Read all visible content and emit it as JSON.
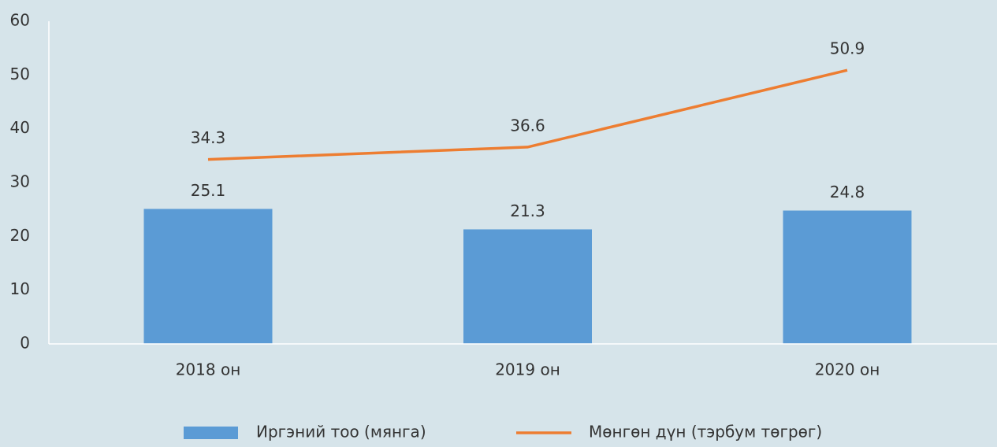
{
  "chart_data": {
    "type": "bar",
    "categories": [
      "2018 он",
      "2019 он",
      "2020 он"
    ],
    "series": [
      {
        "name": "Иргэний тоо (мянга)",
        "type": "bar",
        "color": "#5b9bd5",
        "values": [
          25.1,
          21.3,
          24.8
        ]
      },
      {
        "name": "Мөнгөн дүн (тэрбум төгрөг)",
        "type": "line",
        "color": "#ed7d31",
        "values": [
          34.3,
          36.6,
          50.9
        ]
      }
    ],
    "ylim": [
      0,
      60
    ],
    "yticks": [
      0,
      10,
      20,
      30,
      40,
      50,
      60
    ],
    "grid": false,
    "legend": "bottom"
  }
}
